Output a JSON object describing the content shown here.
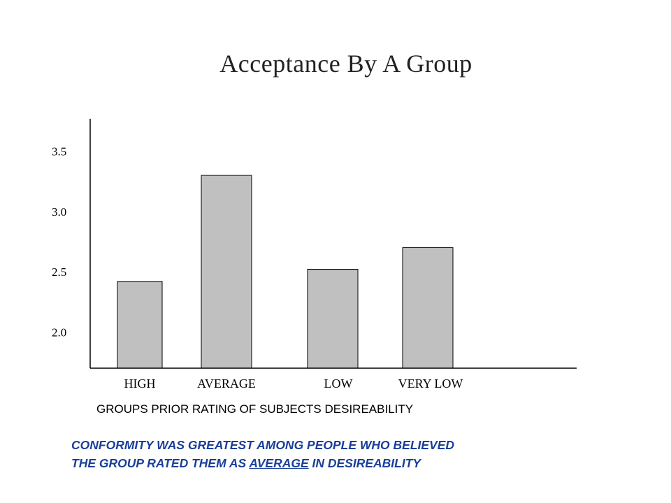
{
  "chart_data": {
    "type": "bar",
    "title": "Acceptance By A Group",
    "xlabel": "GROUPS PRIOR RATING OF SUBJECTS DESIREABILITY",
    "ylabel": "",
    "categories": [
      "HIGH",
      "AVERAGE",
      "LOW",
      "VERY LOW"
    ],
    "values": [
      2.42,
      3.3,
      2.52,
      2.7
    ],
    "yticks": [
      "2.0",
      "2.5",
      "3.0",
      "3.5"
    ],
    "ylim": [
      1.7,
      3.77
    ],
    "grid": false,
    "bar_color": "#c0c0c0",
    "bar_edge_color": "#000000"
  },
  "annotation": {
    "line1": "CONFORMITY WAS GREATEST AMONG PEOPLE WHO BELIEVED",
    "line2_before": "THE GROUP RATED THEM AS ",
    "line2_emph": "AVERAGE",
    "line2_after": " IN DESIREABILITY",
    "color": "#1a3f99"
  }
}
